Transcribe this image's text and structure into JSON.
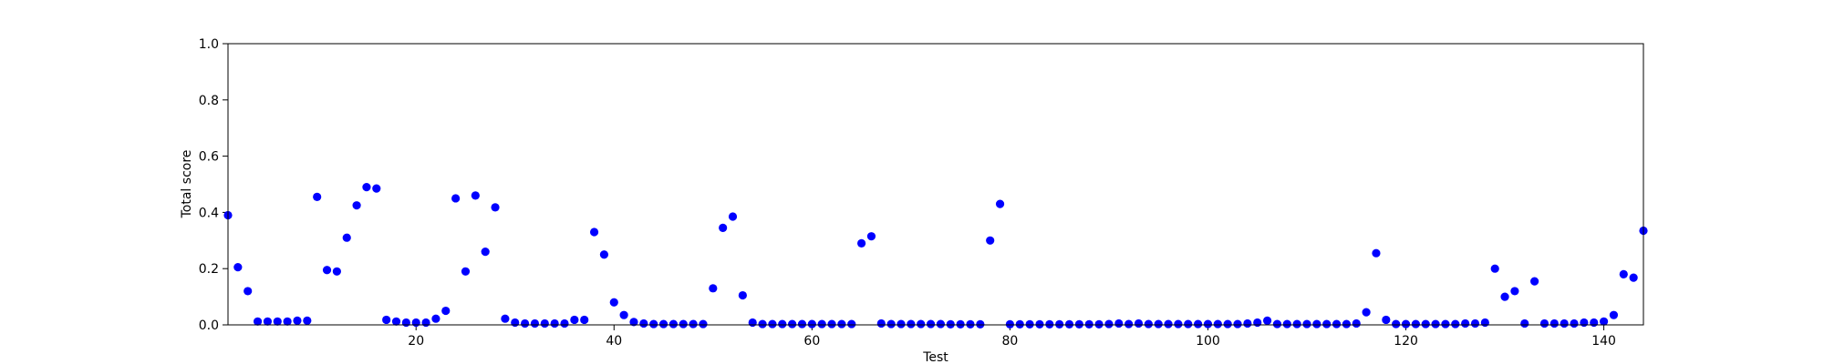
{
  "chart_data": {
    "type": "scatter",
    "xlabel": "Test",
    "ylabel": "Total score",
    "xlim": [
      1,
      144
    ],
    "ylim": [
      0,
      1
    ],
    "grid": false,
    "marker_color": "#0000ff",
    "x_ticks": [
      20,
      40,
      60,
      80,
      100,
      120,
      140
    ],
    "x_tick_labels": [
      "20",
      "40",
      "60",
      "80",
      "100",
      "120",
      "140"
    ],
    "y_ticks": [
      0,
      0.2,
      0.4,
      0.6,
      0.8,
      1.0
    ],
    "y_tick_labels": [
      "0.0",
      "0.2",
      "0.4",
      "0.6",
      "0.8",
      "1.0"
    ],
    "points": [
      [
        1,
        0.39
      ],
      [
        2,
        0.205
      ],
      [
        3,
        0.12
      ],
      [
        4,
        0.012
      ],
      [
        5,
        0.012
      ],
      [
        6,
        0.012
      ],
      [
        7,
        0.012
      ],
      [
        8,
        0.015
      ],
      [
        9,
        0.015
      ],
      [
        10,
        0.455
      ],
      [
        11,
        0.195
      ],
      [
        12,
        0.19
      ],
      [
        13,
        0.31
      ],
      [
        14,
        0.425
      ],
      [
        15,
        0.49
      ],
      [
        16,
        0.485
      ],
      [
        17,
        0.018
      ],
      [
        18,
        0.012
      ],
      [
        19,
        0.008
      ],
      [
        20,
        0.008
      ],
      [
        21,
        0.008
      ],
      [
        22,
        0.022
      ],
      [
        23,
        0.05
      ],
      [
        24,
        0.45
      ],
      [
        25,
        0.19
      ],
      [
        26,
        0.46
      ],
      [
        27,
        0.26
      ],
      [
        28,
        0.418
      ],
      [
        29,
        0.022
      ],
      [
        30,
        0.008
      ],
      [
        31,
        0.005
      ],
      [
        32,
        0.005
      ],
      [
        33,
        0.005
      ],
      [
        34,
        0.005
      ],
      [
        35,
        0.005
      ],
      [
        36,
        0.018
      ],
      [
        37,
        0.018
      ],
      [
        38,
        0.33
      ],
      [
        39,
        0.25
      ],
      [
        40,
        0.08
      ],
      [
        41,
        0.035
      ],
      [
        42,
        0.01
      ],
      [
        43,
        0.005
      ],
      [
        44,
        0.003
      ],
      [
        45,
        0.003
      ],
      [
        46,
        0.003
      ],
      [
        47,
        0.003
      ],
      [
        48,
        0.003
      ],
      [
        49,
        0.003
      ],
      [
        50,
        0.13
      ],
      [
        51,
        0.345
      ],
      [
        52,
        0.385
      ],
      [
        53,
        0.105
      ],
      [
        54,
        0.008
      ],
      [
        55,
        0.003
      ],
      [
        56,
        0.003
      ],
      [
        57,
        0.003
      ],
      [
        58,
        0.003
      ],
      [
        59,
        0.003
      ],
      [
        60,
        0.003
      ],
      [
        61,
        0.003
      ],
      [
        62,
        0.003
      ],
      [
        63,
        0.003
      ],
      [
        64,
        0.003
      ],
      [
        65,
        0.29
      ],
      [
        66,
        0.315
      ],
      [
        67,
        0.005
      ],
      [
        68,
        0.003
      ],
      [
        69,
        0.003
      ],
      [
        70,
        0.003
      ],
      [
        71,
        0.003
      ],
      [
        72,
        0.003
      ],
      [
        73,
        0.003
      ],
      [
        74,
        0.002
      ],
      [
        75,
        0.002
      ],
      [
        76,
        0.002
      ],
      [
        77,
        0.002
      ],
      [
        78,
        0.3
      ],
      [
        79,
        0.43
      ],
      [
        80,
        0.002
      ],
      [
        81,
        0.002
      ],
      [
        82,
        0.002
      ],
      [
        83,
        0.002
      ],
      [
        84,
        0.002
      ],
      [
        85,
        0.002
      ],
      [
        86,
        0.002
      ],
      [
        87,
        0.002
      ],
      [
        88,
        0.002
      ],
      [
        89,
        0.002
      ],
      [
        90,
        0.003
      ],
      [
        91,
        0.005
      ],
      [
        92,
        0.003
      ],
      [
        93,
        0.005
      ],
      [
        94,
        0.003
      ],
      [
        95,
        0.003
      ],
      [
        96,
        0.003
      ],
      [
        97,
        0.003
      ],
      [
        98,
        0.003
      ],
      [
        99,
        0.003
      ],
      [
        100,
        0.003
      ],
      [
        101,
        0.003
      ],
      [
        102,
        0.003
      ],
      [
        103,
        0.003
      ],
      [
        104,
        0.005
      ],
      [
        105,
        0.008
      ],
      [
        106,
        0.015
      ],
      [
        107,
        0.003
      ],
      [
        108,
        0.003
      ],
      [
        109,
        0.003
      ],
      [
        110,
        0.003
      ],
      [
        111,
        0.003
      ],
      [
        112,
        0.003
      ],
      [
        113,
        0.003
      ],
      [
        114,
        0.003
      ],
      [
        115,
        0.005
      ],
      [
        116,
        0.045
      ],
      [
        117,
        0.255
      ],
      [
        118,
        0.018
      ],
      [
        119,
        0.003
      ],
      [
        120,
        0.003
      ],
      [
        121,
        0.003
      ],
      [
        122,
        0.003
      ],
      [
        123,
        0.003
      ],
      [
        124,
        0.003
      ],
      [
        125,
        0.003
      ],
      [
        126,
        0.005
      ],
      [
        127,
        0.005
      ],
      [
        128,
        0.008
      ],
      [
        129,
        0.2
      ],
      [
        130,
        0.1
      ],
      [
        131,
        0.12
      ],
      [
        132,
        0.005
      ],
      [
        133,
        0.155
      ],
      [
        134,
        0.005
      ],
      [
        135,
        0.005
      ],
      [
        136,
        0.005
      ],
      [
        137,
        0.005
      ],
      [
        138,
        0.008
      ],
      [
        139,
        0.008
      ],
      [
        140,
        0.012
      ],
      [
        141,
        0.035
      ],
      [
        142,
        0.18
      ],
      [
        143,
        0.168
      ],
      [
        144,
        0.335
      ]
    ]
  }
}
